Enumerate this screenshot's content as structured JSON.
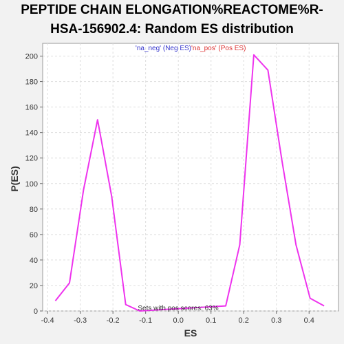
{
  "chart_data": {
    "type": "line",
    "title_lines": [
      "PEPTIDE CHAIN ELONGATION%REACTOME%R-",
      "HSA-156902.4: Random ES distribution"
    ],
    "xlabel": "ES",
    "ylabel": "P(ES)",
    "xlim": [
      -0.415,
      0.49
    ],
    "ylim": [
      0,
      210
    ],
    "x_ticks": [
      -0.4,
      -0.3,
      -0.2,
      -0.1,
      0.0,
      0.1,
      0.2,
      0.3,
      0.4
    ],
    "x_tick_labels": [
      "-0.4",
      "-0.3",
      "-0.2",
      "-0.1",
      "0.0",
      "0.1",
      "0.2",
      "0.3",
      "0.4"
    ],
    "y_ticks": [
      0,
      20,
      40,
      60,
      80,
      100,
      120,
      140,
      160,
      180,
      200
    ],
    "y_tick_labels": [
      "0",
      "20",
      "40",
      "60",
      "80",
      "100",
      "120",
      "140",
      "160",
      "180",
      "200"
    ],
    "grid": true,
    "legend": {
      "placement": "top-center",
      "entries": [
        {
          "label": "'na_neg' (Neg ES)",
          "color": "#3333cc"
        },
        {
          "label": "'na_pos' (Pos ES)",
          "color": "#dd3333"
        }
      ]
    },
    "series": [
      {
        "color": "#ee33ee",
        "x": [
          -0.376,
          -0.333,
          -0.29,
          -0.247,
          -0.204,
          -0.161,
          -0.118,
          0.145,
          0.188,
          0.231,
          0.274,
          0.317,
          0.36,
          0.403,
          0.446
        ],
        "y": [
          8,
          22,
          95,
          150,
          90,
          5,
          0,
          4,
          52,
          201,
          189,
          118,
          52,
          10,
          4
        ]
      }
    ],
    "annotation": "Sets with pos scores: 63%"
  }
}
